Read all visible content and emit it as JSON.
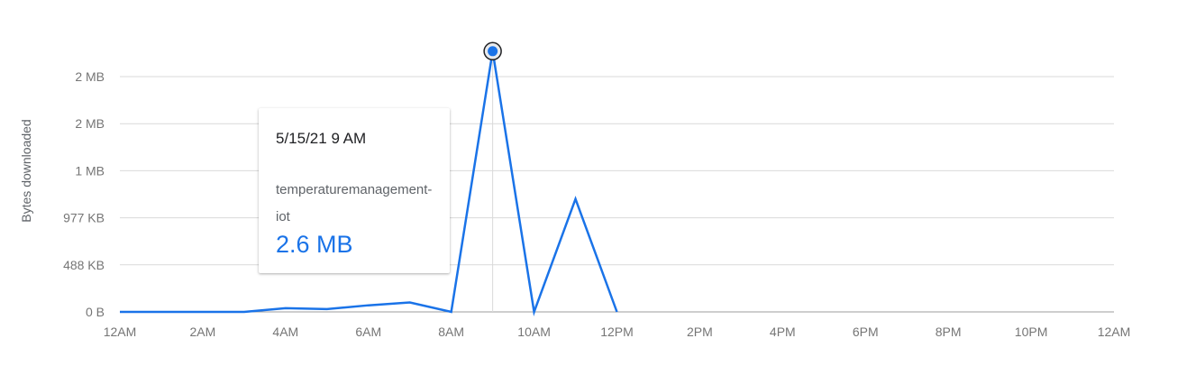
{
  "chart_data": {
    "type": "line",
    "ylabel": "Bytes downloaded",
    "x_tick_labels": [
      "12AM",
      "2AM",
      "4AM",
      "6AM",
      "8AM",
      "10AM",
      "12PM",
      "2PM",
      "4PM",
      "6PM",
      "8PM",
      "10PM",
      "12AM"
    ],
    "y_tick_labels": [
      "0 B",
      "488 KB",
      "977 KB",
      "1 MB",
      "2 MB",
      "2 MB"
    ],
    "y_tick_values_mb": [
      0,
      0.5,
      1.0,
      1.5,
      2.0,
      2.5
    ],
    "ylim_mb": [
      0,
      2.5
    ],
    "xlim_hours": [
      0,
      24
    ],
    "grid": true,
    "series": [
      {
        "name": "temperaturemanagement-iot",
        "color": "#1a73e8",
        "x_hours": [
          0,
          1,
          2,
          3,
          4,
          5,
          6,
          7,
          8,
          9,
          10,
          11,
          12
        ],
        "values_mb": [
          0,
          0,
          0,
          0,
          0.04,
          0.03,
          0.07,
          0.1,
          0,
          2.77,
          0,
          1.2,
          0
        ]
      }
    ],
    "highlight": {
      "series_index": 0,
      "point_index": 9
    }
  },
  "tooltip": {
    "date": "5/15/21 9 AM",
    "series_name": "temperaturemanagement-iot",
    "value": "2.6 MB"
  }
}
